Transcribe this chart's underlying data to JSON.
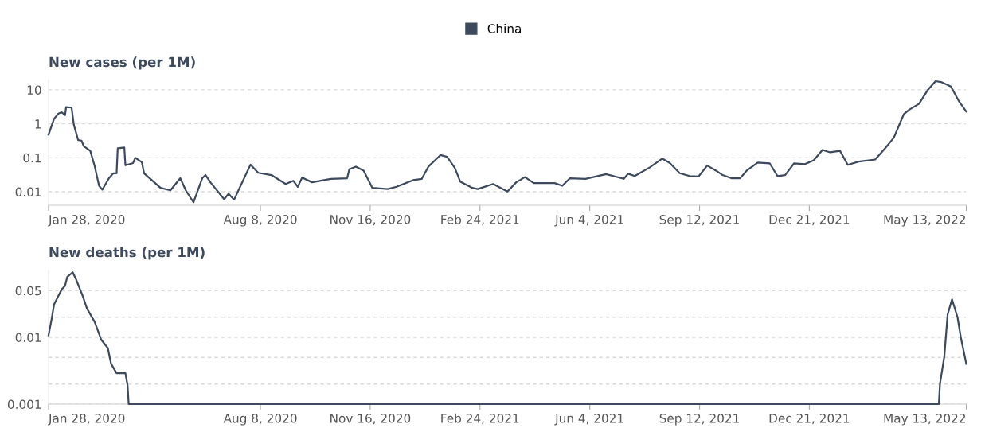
{
  "chart_data": [
    {
      "type": "line",
      "title": "New cases (per 1M)",
      "log": "y",
      "grid": "y",
      "legend": "top",
      "xlim": [
        "2020-01-28",
        "2022-05-13"
      ],
      "ylim": [
        0.004,
        20
      ],
      "yticks": [
        0.01,
        0.1,
        1,
        10
      ],
      "xticks": [
        {
          "value": "2020-01-28",
          "label": "Jan 28, 2020"
        },
        {
          "value": "2020-08-08",
          "label": "Aug 8, 2020"
        },
        {
          "value": "2020-11-16",
          "label": "Nov 16, 2020"
        },
        {
          "value": "2021-02-24",
          "label": "Feb 24, 2021"
        },
        {
          "value": "2021-06-04",
          "label": "Jun 4, 2021"
        },
        {
          "value": "2021-09-12",
          "label": "Sep 12, 2021"
        },
        {
          "value": "2021-12-21",
          "label": "Dec 21, 2021"
        },
        {
          "value": "2022-05-13",
          "label": "May 13, 2022"
        }
      ],
      "series": [
        {
          "name": "China",
          "color": "#3d4a5e",
          "x": [
            "2020-01-28",
            "2020-02-02",
            "2020-02-06",
            "2020-02-09",
            "2020-02-12",
            "2020-02-13",
            "2020-02-18",
            "2020-02-20",
            "2020-02-24",
            "2020-02-27",
            "2020-02-29",
            "2020-03-06",
            "2020-03-10",
            "2020-03-14",
            "2020-03-17",
            "2020-03-23",
            "2020-03-27",
            "2020-03-30",
            "2020-03-31",
            "2020-04-06",
            "2020-04-07",
            "2020-04-14",
            "2020-04-16",
            "2020-04-22",
            "2020-04-24",
            "2020-05-01",
            "2020-05-09",
            "2020-05-18",
            "2020-05-27",
            "2020-06-01",
            "2020-06-08",
            "2020-06-16",
            "2020-06-19",
            "2020-06-24",
            "2020-07-06",
            "2020-07-10",
            "2020-07-15",
            "2020-07-20",
            "2020-07-30",
            "2020-08-06",
            "2020-08-18",
            "2020-08-31",
            "2020-09-07",
            "2020-09-11",
            "2020-09-15",
            "2020-09-24",
            "2020-10-11",
            "2020-10-26",
            "2020-10-28",
            "2020-11-03",
            "2020-11-10",
            "2020-11-18",
            "2020-12-02",
            "2020-12-10",
            "2020-12-25",
            "2021-01-02",
            "2021-01-08",
            "2021-01-19",
            "2021-01-25",
            "2021-02-01",
            "2021-02-06",
            "2021-02-17",
            "2021-02-22",
            "2021-03-08",
            "2021-03-21",
            "2021-03-29",
            "2021-04-06",
            "2021-04-14",
            "2021-05-03",
            "2021-05-10",
            "2021-05-17",
            "2021-05-31",
            "2021-06-19",
            "2021-07-05",
            "2021-07-09",
            "2021-07-15",
            "2021-07-29",
            "2021-08-09",
            "2021-08-16",
            "2021-08-25",
            "2021-09-03",
            "2021-09-11",
            "2021-09-19",
            "2021-09-27",
            "2021-10-03",
            "2021-10-11",
            "2021-10-19",
            "2021-10-25",
            "2021-11-04",
            "2021-11-15",
            "2021-11-22",
            "2021-11-29",
            "2021-12-07",
            "2021-12-17",
            "2021-12-25",
            "2022-01-02",
            "2022-01-09",
            "2022-01-18",
            "2022-01-25",
            "2022-02-04",
            "2022-02-19",
            "2022-02-28",
            "2022-03-08",
            "2022-03-17",
            "2022-03-22",
            "2022-03-31",
            "2022-04-08",
            "2022-04-15",
            "2022-04-20",
            "2022-04-29",
            "2022-05-06",
            "2022-05-13"
          ],
          "values": [
            0.48,
            1.4,
            2.0,
            2.2,
            1.8,
            3.1,
            3.0,
            0.95,
            0.33,
            0.32,
            0.22,
            0.16,
            0.057,
            0.015,
            0.0115,
            0.025,
            0.035,
            0.035,
            0.19,
            0.2,
            0.06,
            0.07,
            0.1,
            0.074,
            0.035,
            0.022,
            0.013,
            0.011,
            0.025,
            0.011,
            0.0049,
            0.025,
            0.031,
            0.018,
            0.006,
            0.0088,
            0.0058,
            0.013,
            0.063,
            0.036,
            0.031,
            0.017,
            0.021,
            0.014,
            0.026,
            0.019,
            0.024,
            0.025,
            0.046,
            0.055,
            0.042,
            0.013,
            0.012,
            0.014,
            0.022,
            0.024,
            0.055,
            0.12,
            0.107,
            0.051,
            0.02,
            0.013,
            0.012,
            0.017,
            0.0102,
            0.019,
            0.027,
            0.018,
            0.018,
            0.015,
            0.025,
            0.024,
            0.033,
            0.024,
            0.034,
            0.029,
            0.053,
            0.095,
            0.07,
            0.035,
            0.029,
            0.028,
            0.059,
            0.042,
            0.031,
            0.025,
            0.025,
            0.042,
            0.072,
            0.068,
            0.029,
            0.031,
            0.068,
            0.065,
            0.084,
            0.17,
            0.145,
            0.16,
            0.062,
            0.077,
            0.089,
            0.19,
            0.39,
            1.9,
            2.6,
            3.9,
            10,
            18,
            17,
            12.5,
            4.8,
            2.3
          ]
        }
      ]
    },
    {
      "type": "line",
      "title": "New deaths (per 1M)",
      "log": "y",
      "grid": "y",
      "xlim": [
        "2020-01-28",
        "2022-05-13"
      ],
      "ylim": [
        0.001,
        0.1
      ],
      "yticks": [
        0.001,
        {
          "value": 0.002,
          "label": null
        },
        {
          "value": 0.005,
          "label": null
        },
        0.01,
        {
          "value": 0.02,
          "label": null
        },
        0.05
      ],
      "xticks": [
        {
          "value": "2020-01-28",
          "label": "Jan 28, 2020"
        },
        {
          "value": "2020-08-08",
          "label": "Aug 8, 2020"
        },
        {
          "value": "2020-11-16",
          "label": "Nov 16, 2020"
        },
        {
          "value": "2021-02-24",
          "label": "Feb 24, 2021"
        },
        {
          "value": "2021-06-04",
          "label": "Jun 4, 2021"
        },
        {
          "value": "2021-09-12",
          "label": "Sep 12, 2021"
        },
        {
          "value": "2021-12-21",
          "label": "Dec 21, 2021"
        },
        {
          "value": "2022-05-13",
          "label": "May 13, 2022"
        }
      ],
      "series": [
        {
          "color": "#3d4a5e",
          "x": [
            "2020-01-28",
            "2020-01-31",
            "2020-02-02",
            "2020-02-06",
            "2020-02-09",
            "2020-02-12",
            "2020-02-14",
            "2020-02-19",
            "2020-02-22",
            "2020-02-28",
            "2020-03-03",
            "2020-03-10",
            "2020-03-16",
            "2020-03-22",
            "2020-03-25",
            "2020-03-30",
            "2020-04-07",
            "2020-04-09",
            "2020-04-10",
            "2022-04-18",
            "2022-04-19",
            "2022-04-23",
            "2022-04-26",
            "2022-04-30",
            "2022-05-05",
            "2022-05-08",
            "2022-05-13"
          ],
          "values": [
            0.0107,
            0.0195,
            0.031,
            0.042,
            0.052,
            0.059,
            0.08,
            0.094,
            0.074,
            0.042,
            0.027,
            0.017,
            0.0092,
            0.0069,
            0.004,
            0.0029,
            0.0029,
            0.0019,
            0.001,
            0.001,
            0.002,
            0.0052,
            0.022,
            0.037,
            0.02,
            0.01,
            0.004
          ]
        }
      ]
    }
  ]
}
